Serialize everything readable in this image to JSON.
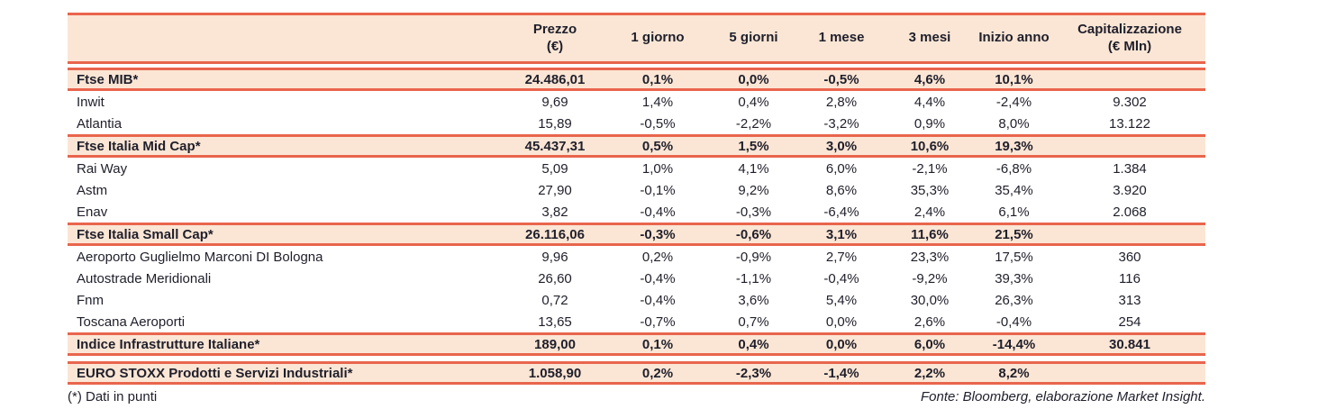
{
  "colors": {
    "line": "#E9654D",
    "band_bg": "#FBE6D5",
    "text": "#1F1F2B"
  },
  "table": {
    "columns": [
      {
        "id": "name",
        "label": "",
        "sub": ""
      },
      {
        "id": "prezzo",
        "label": "Prezzo",
        "sub": "(€)"
      },
      {
        "id": "d1",
        "label": "1 giorno",
        "sub": ""
      },
      {
        "id": "d5",
        "label": "5 giorni",
        "sub": ""
      },
      {
        "id": "m1",
        "label": "1 mese",
        "sub": ""
      },
      {
        "id": "m3",
        "label": "3 mesi",
        "sub": ""
      },
      {
        "id": "ytd",
        "label": "Inizio anno",
        "sub": ""
      },
      {
        "id": "cap",
        "label": "Capitalizzazione",
        "sub": "(€ Mln)"
      }
    ],
    "rows": [
      {
        "type": "index",
        "name": "Ftse MIB*",
        "values": [
          "24.486,01",
          "0,1%",
          "0,0%",
          "-0,5%",
          "4,6%",
          "10,1%",
          ""
        ]
      },
      {
        "type": "stock",
        "name": "Inwit",
        "values": [
          "9,69",
          "1,4%",
          "0,4%",
          "2,8%",
          "4,4%",
          "-2,4%",
          "9.302"
        ]
      },
      {
        "type": "stock",
        "name": "Atlantia",
        "values": [
          "15,89",
          "-0,5%",
          "-2,2%",
          "-3,2%",
          "0,9%",
          "8,0%",
          "13.122"
        ]
      },
      {
        "type": "index",
        "name": "Ftse Italia Mid Cap*",
        "values": [
          "45.437,31",
          "0,5%",
          "1,5%",
          "3,0%",
          "10,6%",
          "19,3%",
          ""
        ]
      },
      {
        "type": "stock",
        "name": "Rai Way",
        "values": [
          "5,09",
          "1,0%",
          "4,1%",
          "6,0%",
          "-2,1%",
          "-6,8%",
          "1.384"
        ]
      },
      {
        "type": "stock",
        "name": "Astm",
        "values": [
          "27,90",
          "-0,1%",
          "9,2%",
          "8,6%",
          "35,3%",
          "35,4%",
          "3.920"
        ]
      },
      {
        "type": "stock",
        "name": "Enav",
        "values": [
          "3,82",
          "-0,4%",
          "-0,3%",
          "-6,4%",
          "2,4%",
          "6,1%",
          "2.068"
        ]
      },
      {
        "type": "index",
        "name": "Ftse Italia Small Cap*",
        "values": [
          "26.116,06",
          "-0,3%",
          "-0,6%",
          "3,1%",
          "11,6%",
          "21,5%",
          ""
        ]
      },
      {
        "type": "stock",
        "name": "Aeroporto Guglielmo Marconi DI Bologna",
        "values": [
          "9,96",
          "0,2%",
          "-0,9%",
          "2,7%",
          "23,3%",
          "17,5%",
          "360"
        ]
      },
      {
        "type": "stock",
        "name": "Autostrade Meridionali",
        "values": [
          "26,60",
          "-0,4%",
          "-1,1%",
          "-0,4%",
          "-9,2%",
          "39,3%",
          "116"
        ]
      },
      {
        "type": "stock",
        "name": "Fnm",
        "values": [
          "0,72",
          "-0,4%",
          "3,6%",
          "5,4%",
          "30,0%",
          "26,3%",
          "313"
        ]
      },
      {
        "type": "stock",
        "name": "Toscana Aeroporti",
        "values": [
          "13,65",
          "-0,7%",
          "0,7%",
          "0,0%",
          "2,6%",
          "-0,4%",
          "254"
        ]
      },
      {
        "type": "index",
        "name": "Indice Infrastrutture Italiane*",
        "values": [
          "189,00",
          "0,1%",
          "0,4%",
          "0,0%",
          "6,0%",
          "-14,4%",
          "30.841"
        ],
        "gap_after": true
      },
      {
        "type": "index",
        "name": "EURO STOXX Prodotti e Servizi Industriali*",
        "values": [
          "1.058,90",
          "0,2%",
          "-2,3%",
          "-1,4%",
          "2,2%",
          "8,2%",
          ""
        ]
      }
    ]
  },
  "footer": {
    "footnote": "(*) Dati in punti",
    "source": "Fonte: Bloomberg, elaborazione Market Insight."
  }
}
